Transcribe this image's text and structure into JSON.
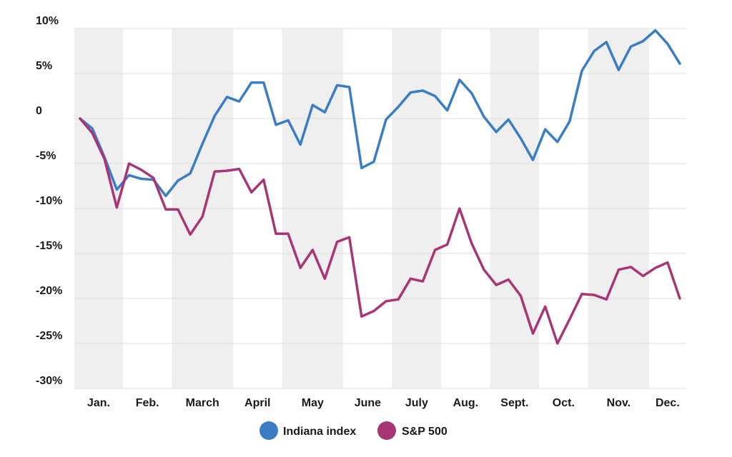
{
  "chart_data": {
    "type": "line",
    "title": "",
    "xlabel": "",
    "ylabel": "",
    "ylim": [
      -30,
      10
    ],
    "y_ticks": [
      {
        "value": 10,
        "label": "10%"
      },
      {
        "value": 5,
        "label": "5%"
      },
      {
        "value": 0,
        "label": "0"
      },
      {
        "value": -5,
        "label": "-5%"
      },
      {
        "value": -10,
        "label": "-10%"
      },
      {
        "value": -15,
        "label": "-15%"
      },
      {
        "value": -20,
        "label": "-20%"
      },
      {
        "value": -25,
        "label": "-25%"
      },
      {
        "value": -30,
        "label": "-30%"
      }
    ],
    "months": [
      "Jan.",
      "Feb.",
      "March",
      "April",
      "May",
      "June",
      "July",
      "Aug.",
      "Sept.",
      "Oct.",
      "Nov.",
      "Dec."
    ],
    "month_bands": [
      {
        "start": 0,
        "end": 4,
        "shaded": true
      },
      {
        "start": 4,
        "end": 8,
        "shaded": false
      },
      {
        "start": 8,
        "end": 13,
        "shaded": true
      },
      {
        "start": 13,
        "end": 17,
        "shaded": false
      },
      {
        "start": 17,
        "end": 22,
        "shaded": true
      },
      {
        "start": 22,
        "end": 26,
        "shaded": false
      },
      {
        "start": 26,
        "end": 30,
        "shaded": true
      },
      {
        "start": 30,
        "end": 34,
        "shaded": false
      },
      {
        "start": 34,
        "end": 38,
        "shaded": true
      },
      {
        "start": 38,
        "end": 42,
        "shaded": false
      },
      {
        "start": 42,
        "end": 47,
        "shaded": true
      },
      {
        "start": 47,
        "end": 50,
        "shaded": false
      }
    ],
    "x_week_count": 50,
    "series": [
      {
        "name": "Indiana index",
        "color": "#3a7dc4",
        "values": [
          0,
          -1.1,
          -4.3,
          -7.9,
          -6.3,
          -6.7,
          -6.8,
          -8.6,
          -6.9,
          -6.1,
          -2.8,
          0.3,
          2.4,
          1.9,
          4.0,
          4.0,
          -0.7,
          -0.2,
          -2.9,
          1.5,
          0.7,
          3.7,
          3.5,
          -5.5,
          -4.8,
          -0.1,
          1.3,
          2.9,
          3.1,
          2.5,
          0.9,
          4.3,
          2.8,
          0.2,
          -1.5,
          -0.1,
          -2.2,
          -4.6,
          -1.2,
          -2.6,
          -0.3,
          5.3,
          7.5,
          8.5,
          5.4,
          8.0,
          8.6,
          9.8,
          8.3,
          6.1
        ]
      },
      {
        "name": "S&P 500",
        "color": "#a83575",
        "values": [
          0,
          -1.6,
          -4.5,
          -9.9,
          -5.0,
          -5.7,
          -6.6,
          -10.1,
          -10.1,
          -12.9,
          -10.9,
          -5.9,
          -5.8,
          -5.6,
          -8.2,
          -6.8,
          -12.8,
          -12.8,
          -16.6,
          -14.6,
          -17.8,
          -13.7,
          -13.2,
          -22.0,
          -21.4,
          -20.3,
          -20.1,
          -17.8,
          -18.1,
          -14.6,
          -14.0,
          -10.0,
          -13.9,
          -16.8,
          -18.5,
          -17.9,
          -19.7,
          -23.9,
          -20.9,
          -25.0,
          -22.3,
          -19.5,
          -19.6,
          -20.1,
          -16.8,
          -16.5,
          -17.5,
          -16.6,
          -16.0,
          -20.0
        ]
      }
    ],
    "grid": true,
    "legend_position": "bottom-center"
  }
}
